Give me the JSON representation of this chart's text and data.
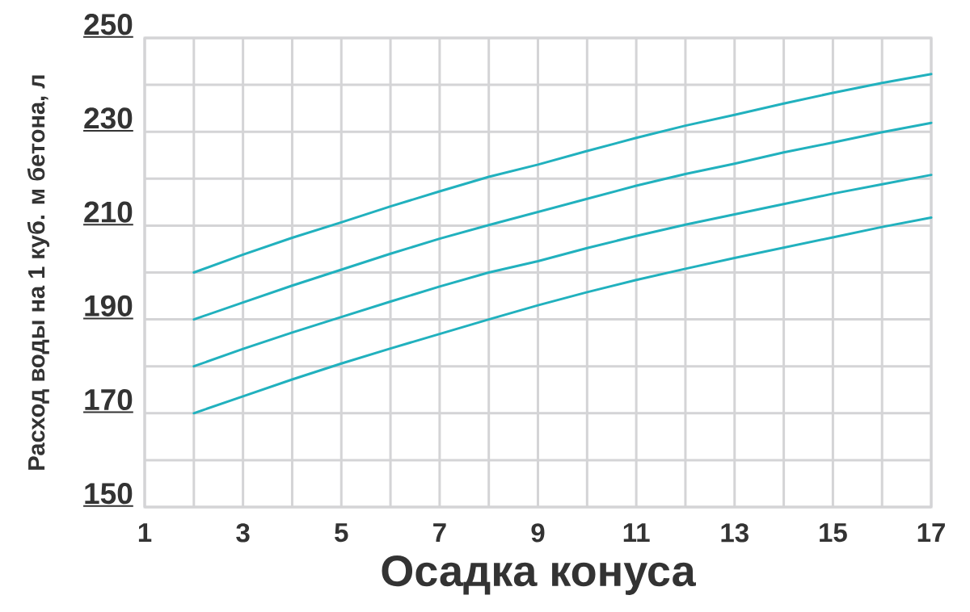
{
  "chart_data": {
    "type": "line",
    "xlabel": "Осадка конуса",
    "ylabel": "Расход воды на 1 куб. м бетона, л",
    "x": [
      2,
      3,
      4,
      5,
      6,
      7,
      8,
      9,
      10,
      11,
      12,
      13,
      14,
      15,
      16,
      17
    ],
    "series": [
      {
        "color": "#21b1be",
        "values": [
          200,
          203.8,
          207.4,
          210.7,
          214.1,
          217.3,
          220.4,
          223,
          225.9,
          228.7,
          231.3,
          233.6,
          236,
          238.3,
          240.4,
          242.3
        ]
      },
      {
        "color": "#21b1be",
        "values": [
          190,
          193.6,
          197.2,
          200.6,
          204,
          207.2,
          210.1,
          212.9,
          215.7,
          218.5,
          221,
          223.2,
          225.6,
          227.7,
          229.9,
          231.9
        ]
      },
      {
        "color": "#21b1be",
        "values": [
          180,
          183.7,
          187.2,
          190.5,
          193.8,
          197,
          200,
          202.4,
          205.2,
          207.8,
          210.2,
          212.4,
          214.6,
          216.8,
          218.8,
          220.8
        ]
      },
      {
        "color": "#21b1be",
        "values": [
          170,
          173.6,
          177.2,
          180.6,
          183.8,
          186.9,
          190,
          193,
          195.8,
          198.4,
          200.8,
          203.1,
          205.3,
          207.5,
          209.7,
          211.7
        ]
      }
    ],
    "xlim": [
      1,
      17
    ],
    "ylim": [
      150,
      250
    ],
    "xticks": [
      1,
      {
        "value": 2,
        "label": null
      },
      3,
      {
        "value": 4,
        "label": null
      },
      5,
      {
        "value": 6,
        "label": null
      },
      7,
      {
        "value": 8,
        "label": null
      },
      9,
      {
        "value": 10,
        "label": null
      },
      11,
      {
        "value": 12,
        "label": null
      },
      13,
      {
        "value": 14,
        "label": null
      },
      15,
      {
        "value": 16,
        "label": null
      },
      17
    ],
    "yticks": [
      150,
      {
        "value": 160,
        "label": null
      },
      170,
      {
        "value": 180,
        "label": null
      },
      190,
      {
        "value": 200,
        "label": null
      },
      210,
      {
        "value": 220,
        "label": null
      },
      230,
      {
        "value": 240,
        "label": null
      },
      250
    ],
    "grid": true,
    "marker": "none",
    "line_style": "solid"
  }
}
